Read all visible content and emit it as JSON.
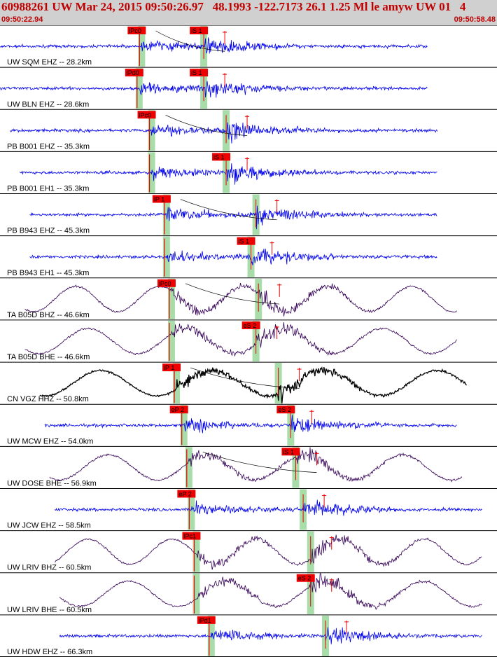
{
  "header": {
    "title": "60988261 UW Mar 24, 2015 09:50:26.97   48.1993 -122.7173 26.1 1.25 Ml le amyw UW 01   4",
    "time_start": "09:50:22.94",
    "time_end": "09:50:58.48"
  },
  "colors": {
    "trace_blue": "#0000ee",
    "trace_purple": "#330055",
    "trace_black": "#000000",
    "pick_red": "#ee0000",
    "window_green": "#a8dca8"
  },
  "traces": [
    {
      "label": "UW SQM EHZ -- 28.2km",
      "color": "blue",
      "kind": "hf",
      "start": 0.0,
      "end": 0.86,
      "p_time": 0.285,
      "s_time": 0.41,
      "picks": [
        {
          "label": "iPc0",
          "time": 0.285
        },
        {
          "label": "iS 1",
          "time": 0.41
        }
      ]
    },
    {
      "label": "UW BLN EHZ -- 28.6km",
      "color": "blue",
      "kind": "hf",
      "start": 0.0,
      "end": 0.86,
      "p_time": 0.28,
      "s_time": 0.41,
      "picks": [
        {
          "label": "iPd0",
          "time": 0.28
        },
        {
          "label": "iS 1",
          "time": 0.41
        }
      ]
    },
    {
      "label": "PB B001 EHZ -- 35.3km",
      "color": "blue",
      "kind": "hf",
      "start": 0.02,
      "end": 0.88,
      "p_time": 0.305,
      "s_time": 0.455,
      "picks": [
        {
          "label": "iPc0",
          "time": 0.305
        }
      ]
    },
    {
      "label": "PB B001 EH1 -- 35.3km",
      "color": "blue",
      "kind": "hf",
      "start": 0.04,
      "end": 0.88,
      "p_time": 0.305,
      "s_time": 0.455,
      "picks": [
        {
          "label": "iS 1",
          "time": 0.455
        }
      ]
    },
    {
      "label": "PB B943 EHZ -- 45.3km",
      "color": "blue",
      "kind": "hf",
      "start": 0.06,
      "end": 0.88,
      "p_time": 0.335,
      "s_time": 0.515,
      "picks": [
        {
          "label": "iP 1",
          "time": 0.335
        }
      ]
    },
    {
      "label": "PB B943 EH1 -- 45.3km",
      "color": "blue",
      "kind": "hf",
      "start": 0.06,
      "end": 0.88,
      "p_time": 0.335,
      "s_time": 0.505,
      "picks": [
        {
          "label": "iS 1",
          "time": 0.505
        }
      ]
    },
    {
      "label": "TA B05D BHZ -- 46.6km",
      "color": "purple",
      "kind": "lp",
      "start": 0.05,
      "end": 0.92,
      "p_time": 0.345,
      "s_time": 0.52,
      "picks": [
        {
          "label": "iPc0",
          "time": 0.345
        }
      ]
    },
    {
      "label": "TA B05D BHE -- 46.6km",
      "color": "purple",
      "kind": "lp",
      "start": 0.05,
      "end": 0.92,
      "p_time": 0.345,
      "s_time": 0.515,
      "picks": [
        {
          "label": "eS 2",
          "time": 0.515
        }
      ]
    },
    {
      "label": "CN VGZ HHZ -- 50.8km",
      "color": "black",
      "kind": "lp",
      "start": 0.08,
      "end": 0.94,
      "p_time": 0.355,
      "s_time": 0.56,
      "picks": [
        {
          "label": "iP 1",
          "time": 0.355
        }
      ]
    },
    {
      "label": "UW MCW EHZ -- 54.0km",
      "color": "blue",
      "kind": "hf",
      "start": 0.09,
      "end": 0.92,
      "p_time": 0.37,
      "s_time": 0.585,
      "picks": [
        {
          "label": "eP 2",
          "time": 0.37
        },
        {
          "label": "eS 2",
          "time": 0.585
        }
      ]
    },
    {
      "label": "UW DOSE BHE -- 56.9km",
      "color": "purple",
      "kind": "lp",
      "start": 0.1,
      "end": 0.93,
      "p_time": 0.38,
      "s_time": 0.595,
      "picks": [
        {
          "label": "iS 1",
          "time": 0.595
        }
      ]
    },
    {
      "label": "UW JCW EHZ -- 58.5km",
      "color": "blue",
      "kind": "hf",
      "start": 0.11,
      "end": 0.97,
      "p_time": 0.385,
      "s_time": 0.61,
      "picks": [
        {
          "label": "eP 2",
          "time": 0.385
        }
      ]
    },
    {
      "label": "UW LRIV BHZ -- 60.5km",
      "color": "purple",
      "kind": "lp",
      "start": 0.11,
      "end": 0.97,
      "p_time": 0.395,
      "s_time": 0.625,
      "picks": [
        {
          "label": "iPc1",
          "time": 0.395
        }
      ]
    },
    {
      "label": "UW LRIV BHE -- 60.5km",
      "color": "purple",
      "kind": "lp",
      "start": 0.12,
      "end": 0.97,
      "p_time": 0.395,
      "s_time": 0.625,
      "picks": [
        {
          "label": "eS 2",
          "time": 0.625
        }
      ]
    },
    {
      "label": "UW HDW EHZ -- 66.3km",
      "color": "blue",
      "kind": "hf",
      "start": 0.12,
      "end": 0.97,
      "p_time": 0.425,
      "s_time": 0.655,
      "picks": [
        {
          "label": "iPd1",
          "time": 0.425
        }
      ]
    }
  ]
}
